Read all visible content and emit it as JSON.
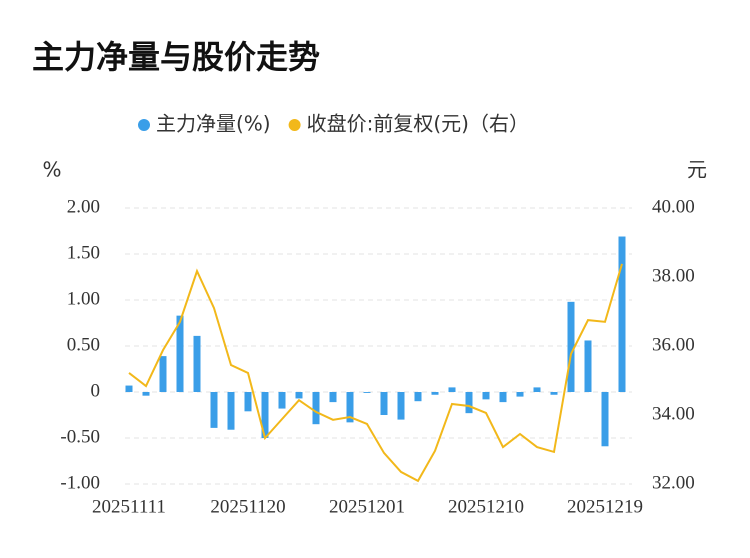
{
  "chart_data": {
    "type": "bar-line",
    "title": "主力净量与股价走势",
    "ylabel": "%",
    "y2label": "元",
    "categories": [
      "20251111",
      null,
      null,
      null,
      null,
      null,
      null,
      "20251120",
      null,
      null,
      null,
      null,
      null,
      null,
      "20251201",
      null,
      null,
      null,
      null,
      null,
      null,
      "20251210",
      null,
      null,
      null,
      null,
      null,
      null,
      "20251219",
      null
    ],
    "series": [
      {
        "name": "主力净量(%)",
        "color": "#3a9ee8",
        "kind": "bar",
        "values": [
          0.07,
          -0.04,
          0.39,
          0.83,
          0.61,
          -0.39,
          -0.41,
          -0.21,
          -0.5,
          -0.18,
          -0.07,
          -0.35,
          -0.11,
          -0.33,
          -0.01,
          -0.25,
          -0.3,
          -0.1,
          -0.03,
          0.05,
          -0.23,
          -0.08,
          -0.11,
          -0.05,
          0.05,
          -0.03,
          0.98,
          0.56,
          -0.59,
          1.69
        ]
      },
      {
        "name": "收盘价:前复权(元)（右）",
        "color": "#f2b81a",
        "kind": "line",
        "axis": "y2",
        "values": [
          35.22,
          34.84,
          35.88,
          36.7,
          38.17,
          37.1,
          35.45,
          35.22,
          33.33,
          33.88,
          34.43,
          34.09,
          33.86,
          33.94,
          33.74,
          32.9,
          32.35,
          32.09,
          32.96,
          34.32,
          34.26,
          34.06,
          33.07,
          33.45,
          33.07,
          32.93,
          35.77,
          36.75,
          36.7,
          38.38
        ]
      }
    ],
    "ylim": [
      -1,
      2
    ],
    "yticks": [
      {
        "value": 2,
        "label": "2.00"
      },
      {
        "value": 1.5,
        "label": "1.50"
      },
      {
        "value": 1,
        "label": "1.00"
      },
      {
        "value": 0.5,
        "label": "0.50"
      },
      0,
      {
        "value": -0.5,
        "label": "-0.50"
      },
      {
        "value": -1,
        "label": "-1.00"
      }
    ],
    "y2lim": [
      32,
      40
    ],
    "y2ticks": [
      {
        "value": 40,
        "label": "40.00"
      },
      {
        "value": 38,
        "label": "38.00"
      },
      {
        "value": 36,
        "label": "36.00"
      },
      {
        "value": 34,
        "label": "34.00"
      },
      {
        "value": 32,
        "label": "32.00"
      }
    ],
    "grid": true
  }
}
